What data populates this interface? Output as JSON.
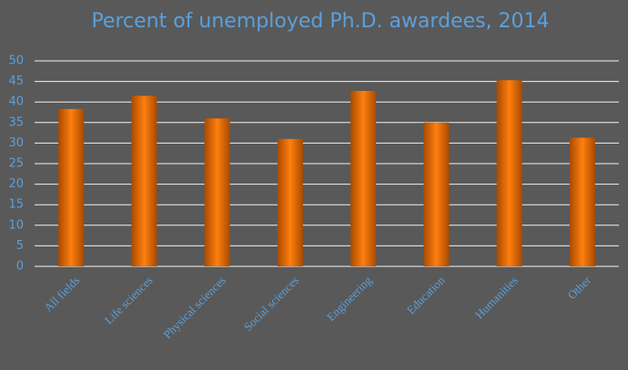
{
  "chart_data": {
    "type": "bar",
    "title": "Percent of unemployed Ph.D. awardees, 2014",
    "categories": [
      "All fields",
      "Life sciences",
      "Physical sciences",
      "Social sciences",
      "Engineering",
      "Education",
      "Humanities",
      "Other"
    ],
    "values": [
      38.3,
      41.5,
      36,
      31,
      42.7,
      35,
      45.3,
      31.3
    ],
    "color": "#ff7f0e",
    "ylim": [
      0,
      50
    ],
    "yticks": [
      0,
      5,
      10,
      15,
      20,
      25,
      30,
      35,
      40,
      45,
      50
    ],
    "grid": true
  }
}
